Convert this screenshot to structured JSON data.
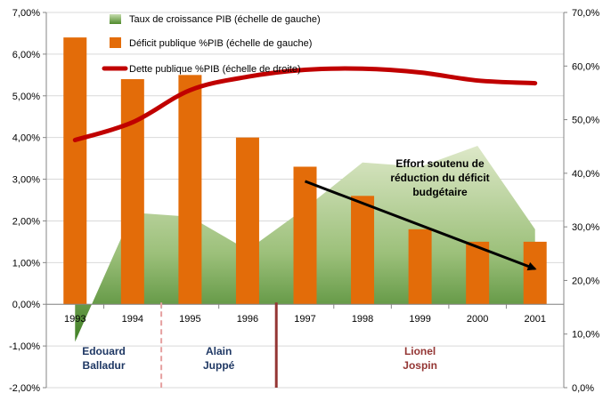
{
  "chart_data": {
    "type": "bar",
    "categories": [
      "1993",
      "1994",
      "1995",
      "1996",
      "1997",
      "1998",
      "1999",
      "2000",
      "2001"
    ],
    "left_axis": {
      "min": -2,
      "max": 7,
      "step": 1,
      "format": "percent2",
      "tick_labels": [
        "-2,00%",
        "-1,00%",
        "0,00%",
        "1,00%",
        "2,00%",
        "3,00%",
        "4,00%",
        "5,00%",
        "6,00%",
        "7,00%"
      ]
    },
    "right_axis": {
      "min": 0,
      "max": 70,
      "step": 10,
      "format": "percent1",
      "tick_labels": [
        "0,0%",
        "10,0%",
        "20,0%",
        "30,0%",
        "40,0%",
        "50,0%",
        "60,0%",
        "70,0%"
      ]
    },
    "series": [
      {
        "name": "Taux de croissance PIB (échelle de gauche)",
        "kind": "area",
        "axis": "left",
        "values": [
          -0.9,
          2.2,
          2.1,
          1.3,
          2.3,
          3.4,
          3.3,
          3.8,
          1.8
        ]
      },
      {
        "name": "Déficit publique %PIB (échelle de gauche)",
        "kind": "bar",
        "axis": "left",
        "values": [
          6.4,
          5.4,
          5.5,
          4.0,
          3.3,
          2.6,
          1.8,
          1.5,
          1.5
        ]
      },
      {
        "name": "Dette publique %PIB (échelle de droite)",
        "kind": "line",
        "axis": "right",
        "values": [
          46.2,
          49.5,
          55.5,
          58.0,
          59.3,
          59.5,
          58.8,
          57.3,
          56.8
        ]
      }
    ],
    "periods": [
      {
        "name_line1": "Edouard",
        "name_line2": "Balladur",
        "color": "#1f3864"
      },
      {
        "name_line1": "Alain",
        "name_line2": "Juppé",
        "color": "#1f3864"
      },
      {
        "name_line1": "Lionel",
        "name_line2": "Jospin",
        "color": "#943634"
      }
    ],
    "annotation": {
      "text_lines": [
        "Effort soutenu de",
        "réduction du déficit",
        "budgétaire"
      ],
      "arrow_from": {
        "category_index": 4,
        "value": 2.95
      },
      "arrow_to": {
        "category_index": 8,
        "value": 0.85
      }
    },
    "colors": {
      "bar": "#e36c09",
      "line": "#c00000",
      "area_top": "#d6e3bc",
      "area_bottom": "#4f8a2b",
      "grid": "#d9d9d9"
    },
    "legend_position": "top",
    "grid": true
  }
}
